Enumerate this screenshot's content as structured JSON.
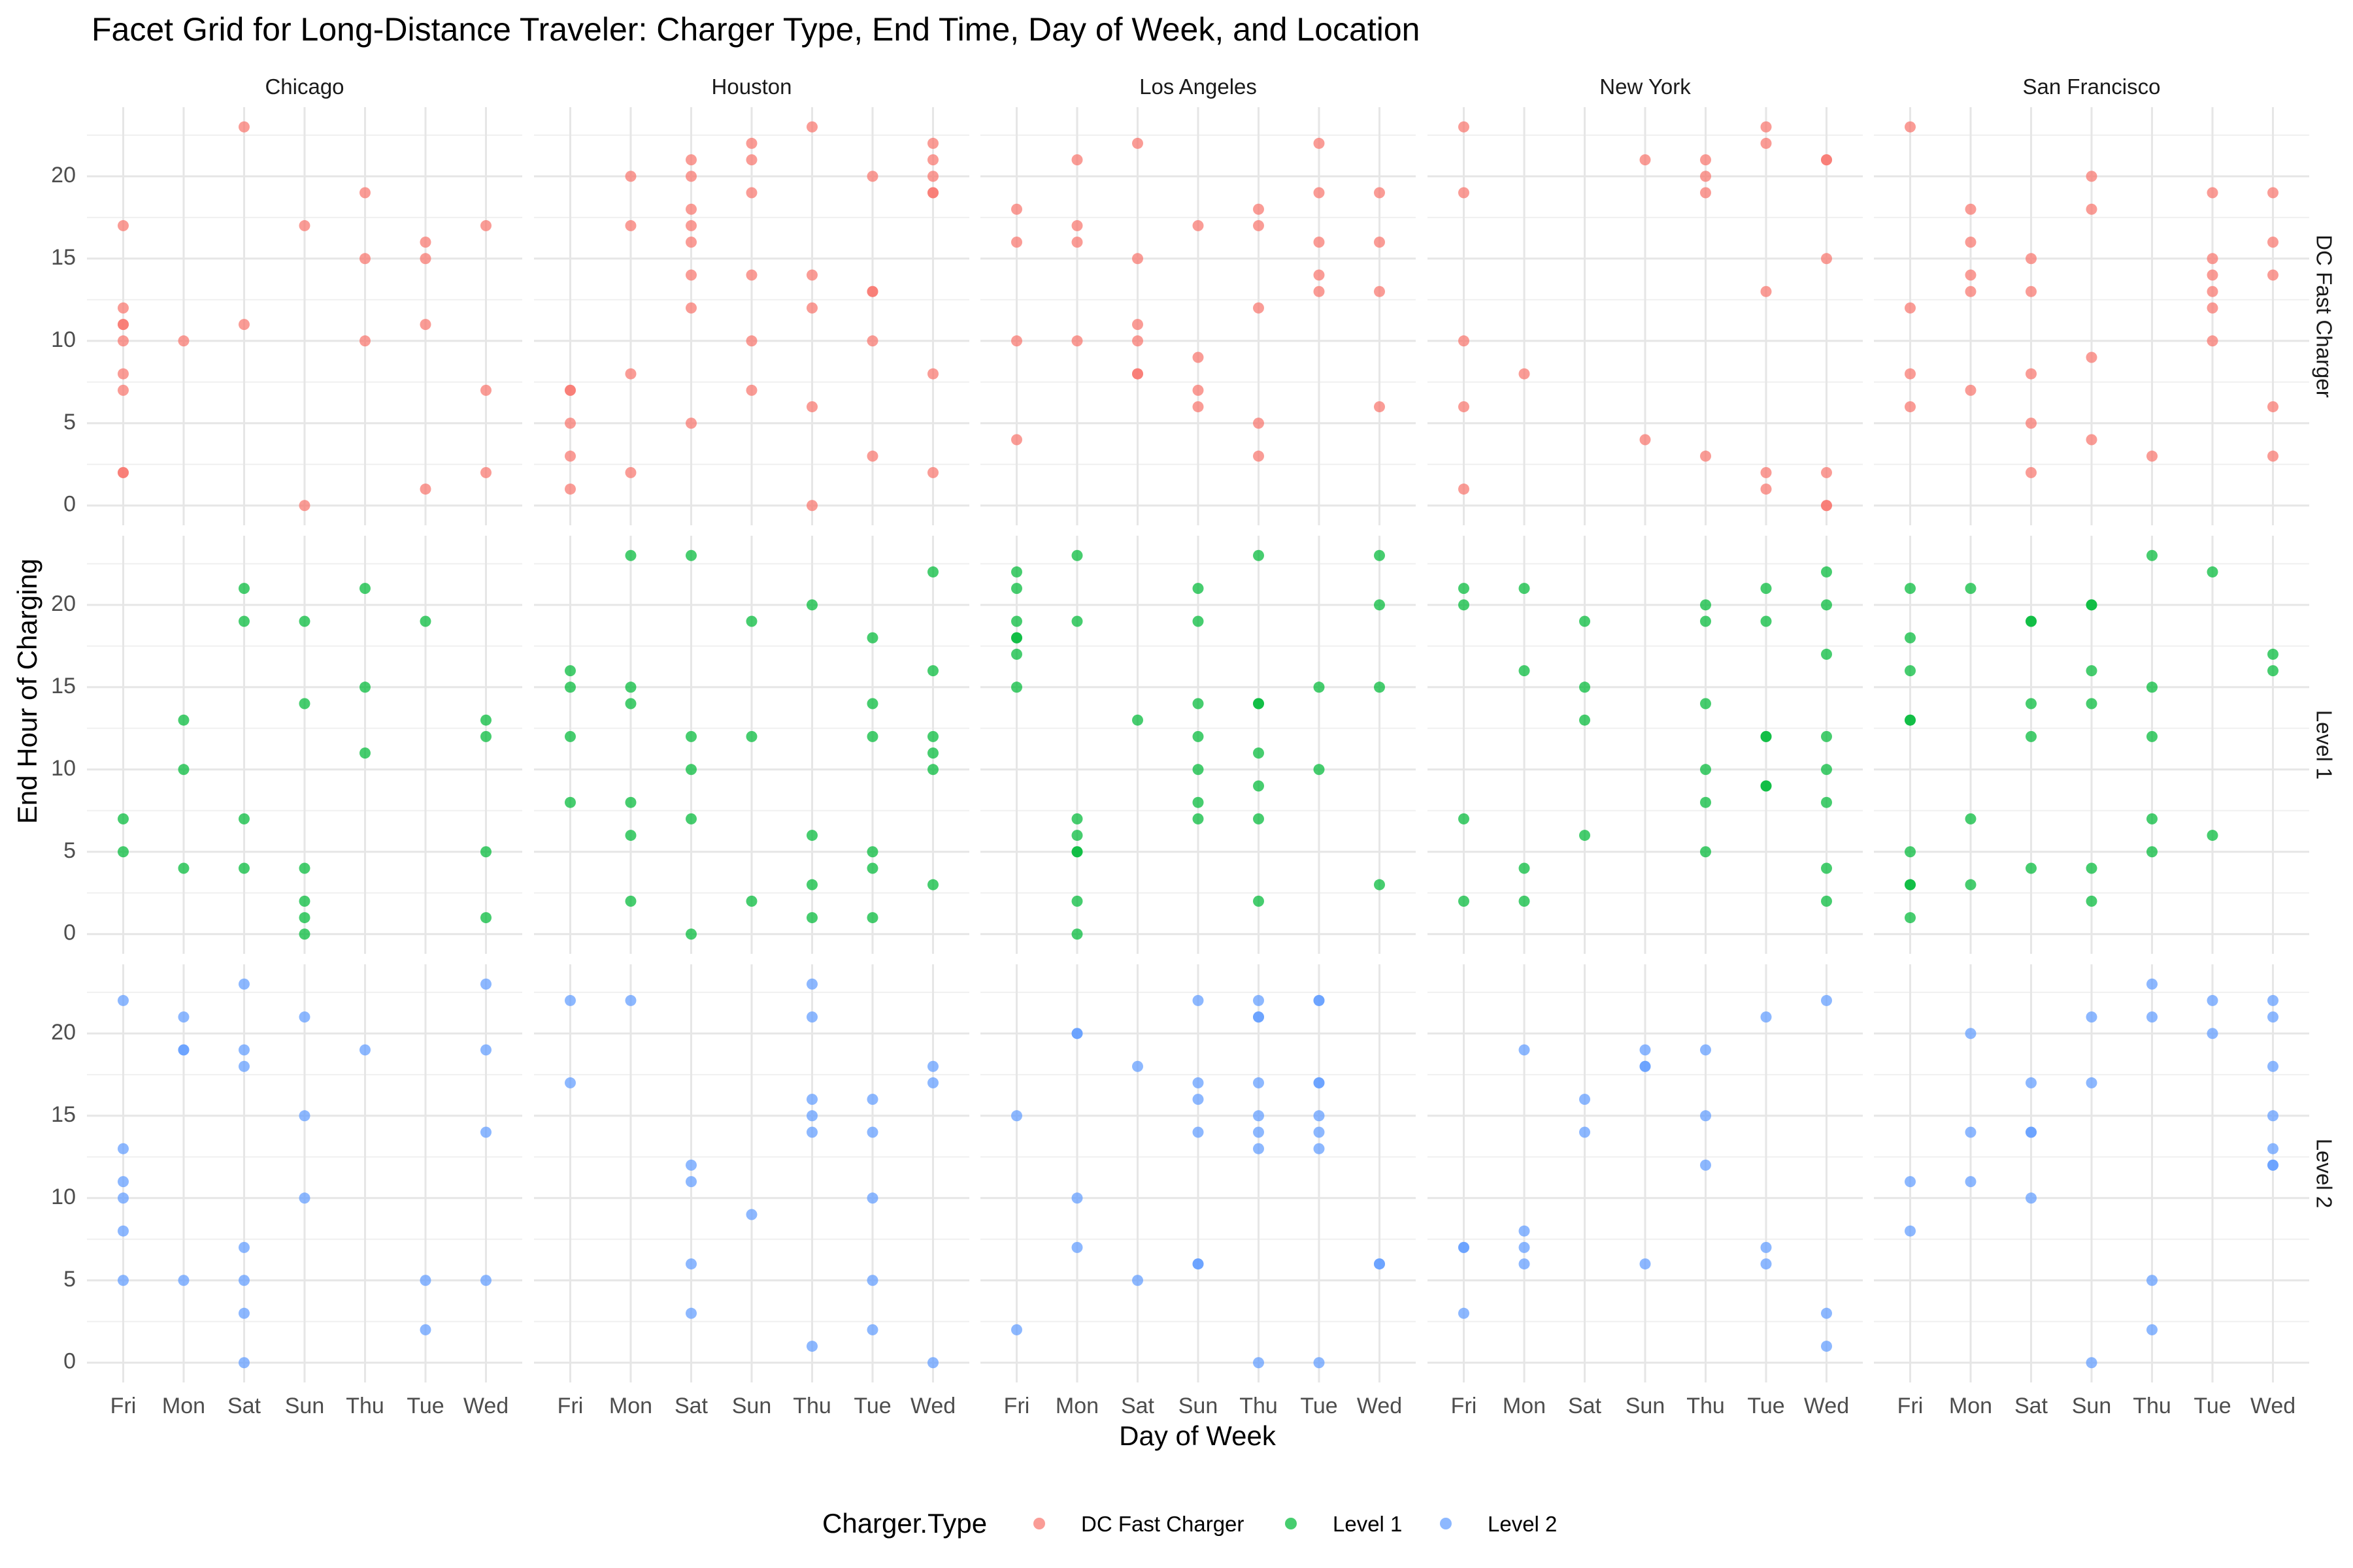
{
  "chart_data": {
    "type": "scatter",
    "title": "Facet Grid for Long-Distance Traveler: Charger Type, End Time, Day of Week, and Location",
    "xlabel": "Day of Week",
    "ylabel": "End Hour of Charging",
    "x_categories": [
      "Fri",
      "Mon",
      "Sat",
      "Sun",
      "Thu",
      "Tue",
      "Wed"
    ],
    "y_ticks": [
      0,
      5,
      10,
      15,
      20
    ],
    "ylim": [
      -1.2,
      24.2
    ],
    "grid": true,
    "legend": {
      "title": "Charger.Type",
      "position": "bottom",
      "entries": [
        {
          "name": "DC Fast Charger",
          "color": "#F8766D"
        },
        {
          "name": "Level 1",
          "color": "#00BA38"
        },
        {
          "name": "Level 2",
          "color": "#619CFF"
        }
      ]
    },
    "facet_cols": [
      "Chicago",
      "Houston",
      "Los Angeles",
      "New York",
      "San Francisco"
    ],
    "facet_rows": [
      "DC Fast Charger",
      "Level 1",
      "Level 2"
    ],
    "panels": [
      {
        "row": "DC Fast Charger",
        "col": "Chicago",
        "points": {
          "Fri": [
            17,
            12,
            11,
            11,
            10,
            8,
            7,
            2,
            2
          ],
          "Mon": [
            10
          ],
          "Sat": [
            23,
            11
          ],
          "Sun": [
            17,
            0
          ],
          "Thu": [
            19,
            15,
            10
          ],
          "Tue": [
            16,
            15,
            11,
            1
          ],
          "Wed": [
            17,
            7,
            2
          ]
        }
      },
      {
        "row": "DC Fast Charger",
        "col": "Houston",
        "points": {
          "Fri": [
            7,
            7,
            5,
            3,
            1
          ],
          "Mon": [
            20,
            17,
            8,
            2
          ],
          "Sat": [
            21,
            20,
            18,
            17,
            16,
            14,
            12,
            5
          ],
          "Sun": [
            22,
            21,
            19,
            14,
            10,
            7
          ],
          "Thu": [
            23,
            14,
            12,
            6,
            0
          ],
          "Tue": [
            20,
            13,
            13,
            10,
            3
          ],
          "Wed": [
            22,
            21,
            20,
            19,
            19,
            8,
            2
          ]
        }
      },
      {
        "row": "DC Fast Charger",
        "col": "Los Angeles",
        "points": {
          "Fri": [
            18,
            16,
            10,
            4
          ],
          "Mon": [
            21,
            17,
            16,
            10
          ],
          "Sat": [
            22,
            15,
            11,
            10,
            8,
            8
          ],
          "Sun": [
            17,
            9,
            7,
            6
          ],
          "Thu": [
            18,
            17,
            12,
            5,
            3
          ],
          "Tue": [
            22,
            19,
            16,
            14,
            13
          ],
          "Wed": [
            19,
            16,
            13,
            6
          ]
        }
      },
      {
        "row": "DC Fast Charger",
        "col": "New York",
        "points": {
          "Fri": [
            23,
            19,
            10,
            6,
            1
          ],
          "Mon": [
            8
          ],
          "Sat": [],
          "Sun": [
            21,
            4
          ],
          "Thu": [
            21,
            20,
            19,
            3
          ],
          "Tue": [
            23,
            22,
            13,
            2,
            1
          ],
          "Wed": [
            21,
            21,
            15,
            2,
            0,
            0
          ]
        }
      },
      {
        "row": "DC Fast Charger",
        "col": "San Francisco",
        "points": {
          "Fri": [
            23,
            12,
            8,
            6
          ],
          "Mon": [
            18,
            16,
            14,
            13,
            7
          ],
          "Sat": [
            15,
            13,
            8,
            5,
            2
          ],
          "Sun": [
            20,
            18,
            9,
            4
          ],
          "Thu": [
            3
          ],
          "Tue": [
            19,
            15,
            14,
            13,
            12,
            10
          ],
          "Wed": [
            19,
            16,
            14,
            6,
            3
          ]
        }
      },
      {
        "row": "Level 1",
        "col": "Chicago",
        "points": {
          "Fri": [
            7,
            5
          ],
          "Mon": [
            13,
            10,
            4
          ],
          "Sat": [
            21,
            19,
            7,
            4
          ],
          "Sun": [
            19,
            14,
            4,
            2,
            1,
            0
          ],
          "Thu": [
            21,
            15,
            11
          ],
          "Tue": [
            19
          ],
          "Wed": [
            13,
            12,
            5,
            1
          ]
        }
      },
      {
        "row": "Level 1",
        "col": "Houston",
        "points": {
          "Fri": [
            16,
            15,
            12,
            8
          ],
          "Mon": [
            23,
            15,
            14,
            8,
            6,
            2
          ],
          "Sat": [
            23,
            12,
            10,
            7,
            0
          ],
          "Sun": [
            19,
            12,
            2
          ],
          "Thu": [
            20,
            6,
            3,
            1
          ],
          "Tue": [
            18,
            14,
            12,
            5,
            4,
            1
          ],
          "Wed": [
            22,
            16,
            12,
            11,
            10,
            3
          ]
        }
      },
      {
        "row": "Level 1",
        "col": "Los Angeles",
        "points": {
          "Fri": [
            22,
            21,
            19,
            18,
            18,
            17,
            15
          ],
          "Mon": [
            23,
            19,
            7,
            6,
            5,
            5,
            2,
            0
          ],
          "Sat": [
            13
          ],
          "Sun": [
            21,
            19,
            14,
            12,
            10,
            8,
            7
          ],
          "Thu": [
            23,
            14,
            14,
            11,
            9,
            7,
            2
          ],
          "Tue": [
            15,
            10
          ],
          "Wed": [
            23,
            20,
            15,
            3
          ]
        }
      },
      {
        "row": "Level 1",
        "col": "New York",
        "points": {
          "Fri": [
            21,
            20,
            7,
            2
          ],
          "Mon": [
            21,
            16,
            4,
            2
          ],
          "Sat": [
            19,
            15,
            13,
            6
          ],
          "Sun": [],
          "Thu": [
            20,
            19,
            14,
            10,
            8,
            5
          ],
          "Tue": [
            21,
            19,
            12,
            12,
            9,
            9
          ],
          "Wed": [
            22,
            20,
            17,
            12,
            10,
            8,
            4,
            2
          ]
        }
      },
      {
        "row": "Level 1",
        "col": "San Francisco",
        "points": {
          "Fri": [
            21,
            18,
            16,
            13,
            13,
            5,
            3,
            3,
            1
          ],
          "Mon": [
            21,
            7,
            3
          ],
          "Sat": [
            19,
            19,
            14,
            12,
            4
          ],
          "Sun": [
            20,
            20,
            16,
            14,
            4,
            2
          ],
          "Thu": [
            23,
            15,
            12,
            7,
            5
          ],
          "Tue": [
            22,
            6
          ],
          "Wed": [
            17,
            16
          ]
        }
      },
      {
        "row": "Level 2",
        "col": "Chicago",
        "points": {
          "Fri": [
            22,
            13,
            11,
            10,
            8,
            5
          ],
          "Mon": [
            21,
            19,
            19,
            5
          ],
          "Sat": [
            23,
            19,
            18,
            7,
            5,
            3,
            0
          ],
          "Sun": [
            21,
            15,
            10
          ],
          "Thu": [
            19
          ],
          "Tue": [
            5,
            2
          ],
          "Wed": [
            23,
            19,
            14,
            5
          ]
        }
      },
      {
        "row": "Level 2",
        "col": "Houston",
        "points": {
          "Fri": [
            22,
            17
          ],
          "Mon": [
            22
          ],
          "Sat": [
            12,
            11,
            6,
            3
          ],
          "Sun": [
            9
          ],
          "Thu": [
            23,
            21,
            16,
            15,
            14,
            1
          ],
          "Tue": [
            16,
            14,
            10,
            5,
            2
          ],
          "Wed": [
            18,
            17,
            0
          ]
        }
      },
      {
        "row": "Level 2",
        "col": "Los Angeles",
        "points": {
          "Fri": [
            15,
            2
          ],
          "Mon": [
            20,
            20,
            10,
            7
          ],
          "Sat": [
            18,
            5
          ],
          "Sun": [
            22,
            17,
            16,
            14,
            6,
            6
          ],
          "Thu": [
            22,
            21,
            21,
            17,
            15,
            14,
            13,
            0
          ],
          "Tue": [
            22,
            22,
            17,
            17,
            15,
            14,
            13,
            0
          ],
          "Wed": [
            6,
            6
          ]
        }
      },
      {
        "row": "Level 2",
        "col": "New York",
        "points": {
          "Fri": [
            7,
            7,
            3
          ],
          "Mon": [
            19,
            8,
            7,
            6
          ],
          "Sat": [
            16,
            14
          ],
          "Sun": [
            19,
            18,
            18,
            6
          ],
          "Thu": [
            19,
            15,
            12
          ],
          "Tue": [
            21,
            7,
            6
          ],
          "Wed": [
            22,
            3,
            1
          ]
        }
      },
      {
        "row": "Level 2",
        "col": "San Francisco",
        "points": {
          "Fri": [
            11,
            8
          ],
          "Mon": [
            20,
            14,
            11
          ],
          "Sat": [
            17,
            14,
            14,
            10
          ],
          "Sun": [
            21,
            17,
            0
          ],
          "Thu": [
            23,
            21,
            5,
            2
          ],
          "Tue": [
            22,
            20
          ],
          "Wed": [
            22,
            21,
            18,
            15,
            13,
            12,
            12
          ]
        }
      }
    ]
  }
}
